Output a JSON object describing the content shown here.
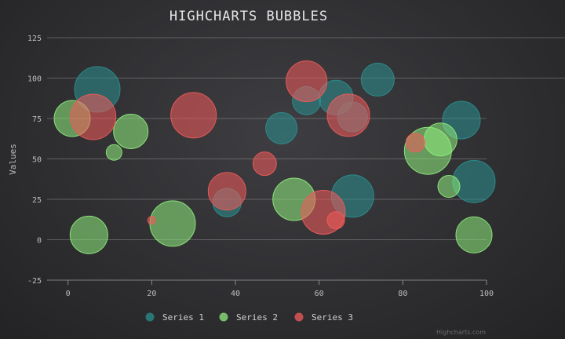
{
  "chart_data": {
    "type": "scatter",
    "title": "HIGHCHARTS BUBBLES",
    "ylabel": "Values",
    "xlabel": "",
    "xlim": [
      -5,
      100
    ],
    "ylim": [
      -25,
      125
    ],
    "x_ticks": [
      0,
      20,
      40,
      60,
      80,
      100
    ],
    "y_ticks": [
      -25,
      0,
      25,
      50,
      75,
      100,
      125
    ],
    "grid": "horizontal",
    "legend_position": "bottom",
    "credits": "Highcharts.com",
    "series": [
      {
        "name": "Series 1",
        "color": "#2b908f",
        "points": [
          {
            "x": 7,
            "y": 93,
            "r": 29
          },
          {
            "x": 57,
            "y": 86,
            "r": 18
          },
          {
            "x": 64,
            "y": 88,
            "r": 22
          },
          {
            "x": 74,
            "y": 99,
            "r": 21
          },
          {
            "x": 68,
            "y": 76,
            "r": 19
          },
          {
            "x": 51,
            "y": 69,
            "r": 20
          },
          {
            "x": 94,
            "y": 74,
            "r": 24
          },
          {
            "x": 97,
            "y": 36,
            "r": 27
          },
          {
            "x": 68,
            "y": 27,
            "r": 27
          },
          {
            "x": 38,
            "y": 23,
            "r": 18
          }
        ]
      },
      {
        "name": "Series 2",
        "color": "#90ee7e",
        "points": [
          {
            "x": 1,
            "y": 75,
            "r": 23
          },
          {
            "x": 15,
            "y": 67,
            "r": 22
          },
          {
            "x": 11,
            "y": 54,
            "r": 10
          },
          {
            "x": 5,
            "y": 3,
            "r": 24
          },
          {
            "x": 25,
            "y": 10,
            "r": 29
          },
          {
            "x": 54,
            "y": 25,
            "r": 27
          },
          {
            "x": 86,
            "y": 55,
            "r": 30
          },
          {
            "x": 89,
            "y": 62,
            "r": 21
          },
          {
            "x": 91,
            "y": 33,
            "r": 14
          },
          {
            "x": 97,
            "y": 3,
            "r": 23
          }
        ]
      },
      {
        "name": "Series 3",
        "color": "#f45b5b",
        "points": [
          {
            "x": 6,
            "y": 76,
            "r": 29
          },
          {
            "x": 30,
            "y": 77,
            "r": 29
          },
          {
            "x": 57,
            "y": 98,
            "r": 26
          },
          {
            "x": 67,
            "y": 77,
            "r": 27
          },
          {
            "x": 47,
            "y": 47,
            "r": 15
          },
          {
            "x": 38,
            "y": 30,
            "r": 24
          },
          {
            "x": 61,
            "y": 17,
            "r": 28
          },
          {
            "x": 64,
            "y": 12,
            "r": 11
          },
          {
            "x": 83,
            "y": 60,
            "r": 12
          },
          {
            "x": 20,
            "y": 12,
            "r": 5
          }
        ]
      }
    ]
  }
}
